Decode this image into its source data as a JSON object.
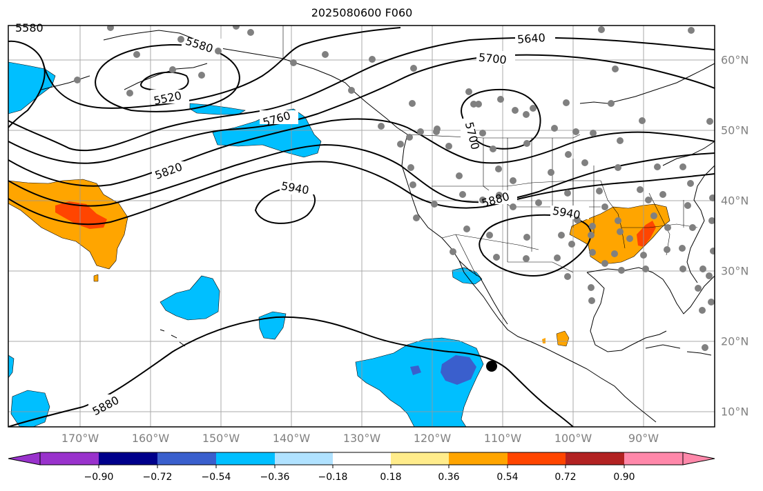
{
  "title": "2025080600 F060",
  "lon_labels": [
    "170°W",
    "160°W",
    "150°W",
    "140°W",
    "130°W",
    "120°W",
    "110°W",
    "100°W",
    "90°W"
  ],
  "lat_labels": [
    "60°N",
    "50°N",
    "40°N",
    "30°N",
    "20°N",
    "10°N"
  ],
  "contour_labels": [
    "5580",
    "5580",
    "5520",
    "5640",
    "5700",
    "5760",
    "5700",
    "5820",
    "5940",
    "5880",
    "5940",
    "5880"
  ],
  "colorbar": {
    "ticks": [
      "−0.90",
      "−0.72",
      "−0.54",
      "−0.36",
      "−0.18",
      "0.18",
      "0.36",
      "0.54",
      "0.72",
      "0.90"
    ],
    "colors": [
      "#9932cc",
      "#00008b",
      "#3a5fcd",
      "#00bfff",
      "#b0e2ff",
      "#ffffff",
      "#ffec8b",
      "#ffa500",
      "#ff4500",
      "#b22222",
      "#ff88aa"
    ]
  },
  "colors": {
    "land_line": "#000000",
    "contour": "#000000",
    "grid": "#999999",
    "station": "#808080",
    "storm_marker": "#000000"
  },
  "icons": {
    "storm_marker": "filled-circle"
  }
}
